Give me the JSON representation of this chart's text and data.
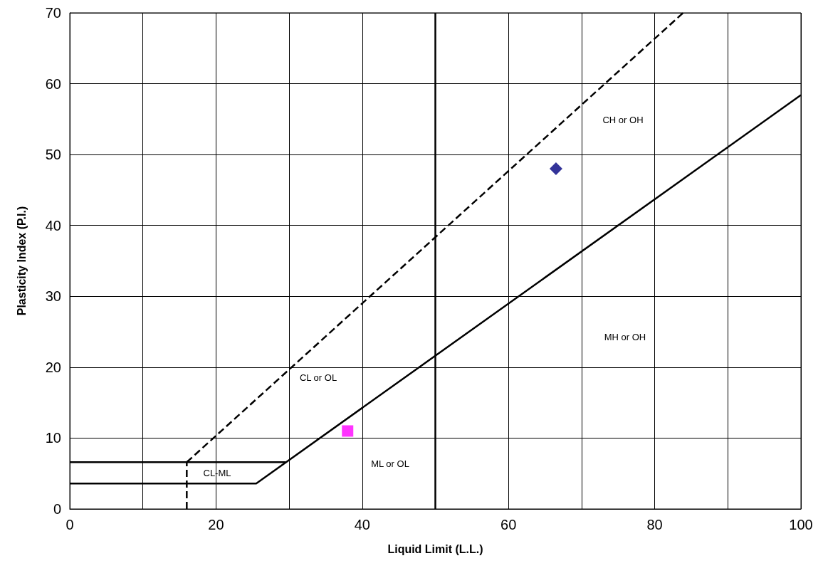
{
  "chart_data": {
    "type": "scatter",
    "xlabel": "Liquid Limit (L.L.)",
    "ylabel": "Plasticity Index (P.I.)",
    "xlim": [
      0,
      100
    ],
    "ylim": [
      0,
      70
    ],
    "xticks": [
      0,
      {
        "value": 10,
        "label": null
      },
      20,
      {
        "value": 30,
        "label": null
      },
      40,
      {
        "value": 50,
        "label": null
      },
      60,
      {
        "value": 70,
        "label": null
      },
      80,
      {
        "value": 90,
        "label": null
      },
      100
    ],
    "yticks": [
      0,
      10,
      20,
      30,
      40,
      50,
      60,
      70
    ],
    "grid": true,
    "ref_lines": [
      {
        "axis": "x",
        "value": 50,
        "color": "#000000",
        "line_style": "solid"
      }
    ],
    "series": [
      {
        "type": "line",
        "color": "#000000",
        "line_style": "solid",
        "x": [
          0,
          25.5,
          100
        ],
        "values": [
          3.6,
          3.6,
          58.4
        ]
      },
      {
        "type": "line",
        "color": "#000000",
        "line_style": "solid",
        "x": [
          0,
          29.5
        ],
        "values": [
          6.6,
          6.6
        ]
      },
      {
        "type": "line",
        "color": "#000000",
        "line_style": "dashed",
        "x": [
          16,
          83.9
        ],
        "values": [
          6.6,
          70
        ]
      },
      {
        "type": "line",
        "color": "#000000",
        "line_style": "dashed",
        "x": [
          16,
          16
        ],
        "values": [
          0,
          6.6
        ]
      },
      {
        "color": "#000080",
        "marker": "diamond",
        "x": [
          66.5
        ],
        "values": [
          48
        ]
      },
      {
        "color": "#ff00ff",
        "marker": "square",
        "x": [
          38
        ],
        "values": [
          11
        ]
      }
    ],
    "annotations": [
      "CH or OH",
      "MH or OH",
      "CL or OL",
      "ML or OL",
      "CL-ML"
    ]
  }
}
